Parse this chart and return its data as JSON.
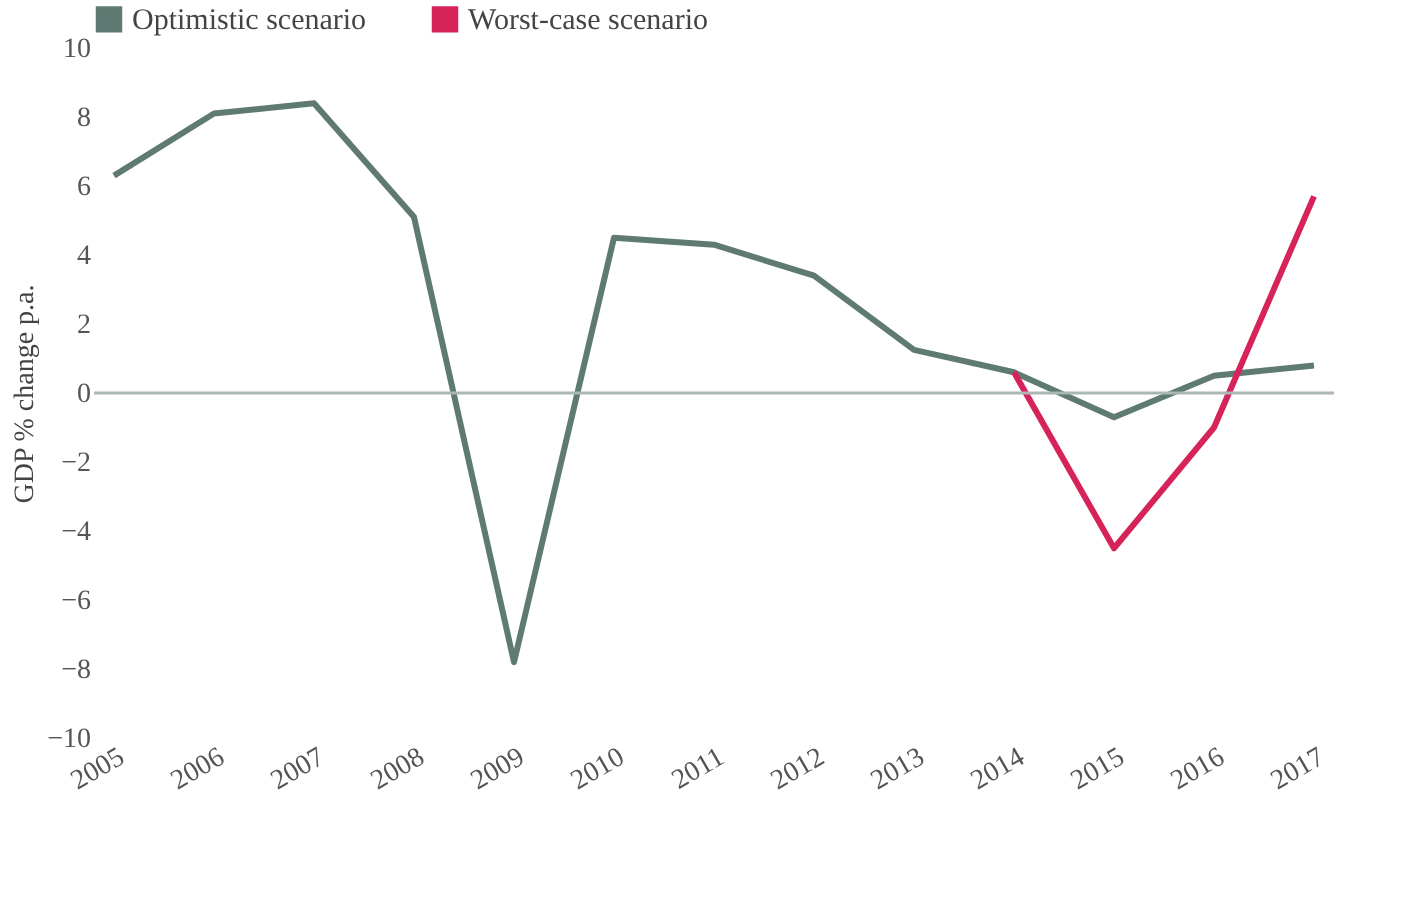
{
  "chart_data": {
    "type": "line",
    "ylabel": "GDP % change p.a.",
    "categories": [
      "2005",
      "2006",
      "2007",
      "2008",
      "2009",
      "2010",
      "2011",
      "2012",
      "2013",
      "2014",
      "2015",
      "2016",
      "2017"
    ],
    "series": [
      {
        "name": "Optimistic scenario",
        "color": "#5f7a72",
        "values": [
          6.3,
          8.1,
          8.4,
          5.1,
          -7.8,
          4.5,
          4.3,
          3.4,
          1.25,
          0.6,
          -0.7,
          0.5,
          0.8
        ]
      },
      {
        "name": "Worst-case scenario",
        "color": "#d6245a",
        "values": [
          null,
          null,
          null,
          null,
          null,
          null,
          null,
          null,
          null,
          0.6,
          -4.5,
          -1.0,
          5.7
        ]
      }
    ],
    "ylim": [
      -10,
      10
    ],
    "yticks": [
      -10,
      -8,
      -6,
      -4,
      -2,
      0,
      2,
      4,
      6,
      8,
      10
    ],
    "grid": false,
    "legend": "top left",
    "ref_lines": [
      {
        "axis": "y",
        "value": 0,
        "color": "#a9b8b3"
      }
    ]
  }
}
